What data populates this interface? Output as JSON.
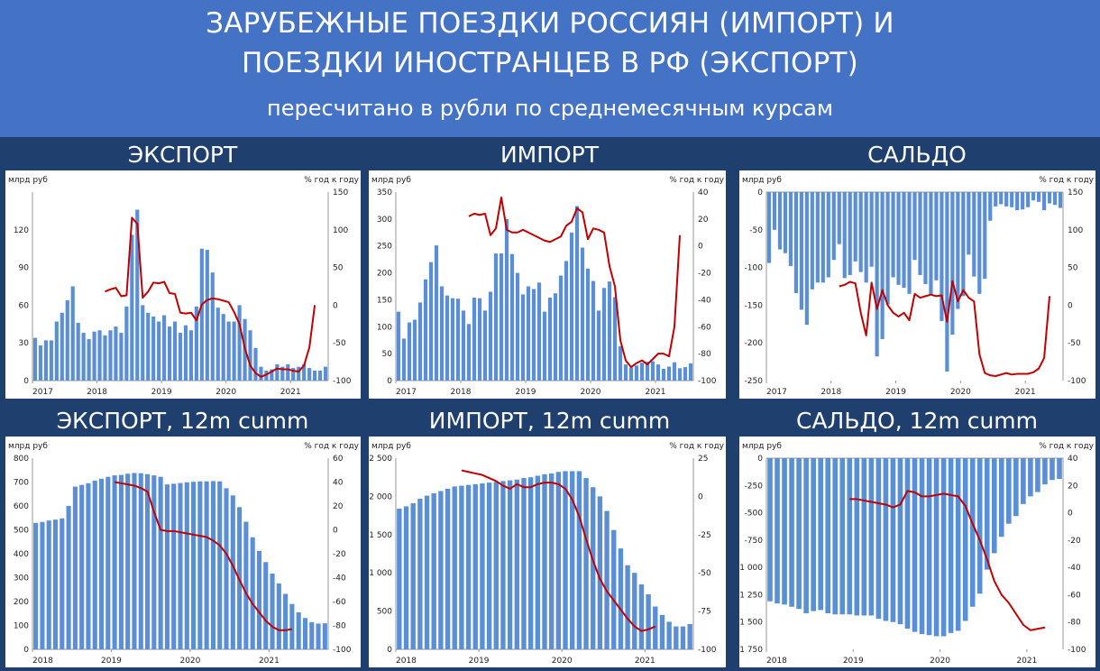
{
  "header": {
    "title_line1": "ЗАРУБЕЖНЫЕ ПОЕЗДКИ РОССИЯН (ИМПОРТ) И",
    "title_line2": "ПОЕЗДКИ ИНОСТРАНЦЕВ В РФ (ЭКСПОРТ)",
    "subtitle": "пересчитано в рубли по среднемесячным курсам"
  },
  "colors": {
    "bars": "#5b8fd5",
    "line": "#c00000",
    "header": "#4472c4",
    "frame": "#1f3f6e"
  },
  "chart_data": [
    {
      "id": "export-monthly",
      "type": "bar",
      "panel_title": "ЭКСПОРТ",
      "left_unit": "млрд руб",
      "right_unit": "% год к году",
      "x_start": 2017,
      "x_ticks": [
        "2017",
        "2018",
        "2019",
        "2020",
        "2021"
      ],
      "ylim": [
        0,
        150
      ],
      "y_ticks": [
        "0",
        "30",
        "60",
        "90",
        "120"
      ],
      "y2lim": [
        -100,
        150
      ],
      "y2_ticks": [
        "-100",
        "-50",
        "0",
        "50",
        "100",
        "150"
      ],
      "series": [
        {
          "values": [
            34,
            28,
            32,
            32,
            47,
            54,
            64,
            75,
            46,
            38,
            33,
            39,
            40,
            36,
            40,
            43,
            38,
            59,
            116,
            136,
            60,
            54,
            51,
            47,
            52,
            43,
            47,
            38,
            44,
            40,
            59,
            105,
            104,
            86,
            58,
            53,
            47,
            47,
            60,
            49,
            40,
            26,
            11,
            8,
            9,
            13,
            11,
            13,
            10,
            11,
            13,
            10,
            8,
            8,
            11
          ]
        },
        {
          "type": "line",
          "axis": "right",
          "start_index": 13,
          "values": [
            18,
            21,
            23,
            12,
            13,
            116,
            108,
            10,
            18,
            30,
            29,
            31,
            16,
            15,
            -10,
            -11,
            -10,
            -20,
            1,
            7,
            9,
            8,
            6,
            4,
            -9,
            -25,
            -57,
            -80,
            -90,
            -95,
            -92,
            -88,
            -84,
            -85,
            -85,
            -87,
            -88,
            -80,
            -56,
            0
          ]
        }
      ]
    },
    {
      "id": "import-monthly",
      "type": "bar",
      "panel_title": "ИМПОРТ",
      "left_unit": "млрд руб",
      "right_unit": "% год к году",
      "x_start": 2017,
      "x_ticks": [
        "2017",
        "2018",
        "2019",
        "2020",
        "2021"
      ],
      "ylim": [
        0,
        350
      ],
      "y_ticks": [
        "0",
        "50",
        "100",
        "150",
        "200",
        "250",
        "300",
        "350"
      ],
      "y2lim": [
        -100,
        40
      ],
      "y2_ticks": [
        "-100",
        "-80",
        "-60",
        "-40",
        "-20",
        "0",
        "20",
        "40"
      ],
      "series": [
        {
          "values": [
            128,
            78,
            108,
            113,
            145,
            188,
            220,
            251,
            175,
            158,
            153,
            152,
            130,
            105,
            154,
            153,
            130,
            165,
            236,
            236,
            300,
            235,
            200,
            160,
            175,
            170,
            182,
            128,
            154,
            162,
            195,
            222,
            275,
            324,
            247,
            208,
            185,
            130,
            172,
            184,
            155,
            64,
            30,
            24,
            28,
            33,
            35,
            36,
            30,
            22,
            26,
            34,
            23,
            25,
            32
          ]
        },
        {
          "type": "line",
          "axis": "right",
          "start_index": 13,
          "values": [
            22,
            24,
            23,
            24,
            8,
            13,
            36,
            12,
            10,
            10,
            12,
            10,
            8,
            6,
            4,
            3,
            5,
            7,
            15,
            18,
            28,
            25,
            5,
            13,
            12,
            10,
            -15,
            -30,
            -70,
            -85,
            -90,
            -87,
            -85,
            -88,
            -84,
            -80,
            -80,
            -82,
            -60,
            8
          ]
        }
      ]
    },
    {
      "id": "balance-monthly",
      "type": "bar",
      "panel_title": "САЛЬДО",
      "left_unit": "млрд руб",
      "right_unit": "% год к году",
      "x_start": 2017,
      "x_ticks": [
        "2017",
        "2018",
        "2019",
        "2020",
        "2021"
      ],
      "ylim": [
        -250,
        0
      ],
      "y_ticks": [
        "-250",
        "-200",
        "-150",
        "-100",
        "-50",
        "0"
      ],
      "y2lim": [
        -100,
        150
      ],
      "y2_ticks": [
        "-100",
        "-50",
        "0",
        "50",
        "100",
        "150"
      ],
      "series": [
        {
          "values": [
            -94,
            -50,
            -76,
            -81,
            -98,
            -134,
            -156,
            -176,
            -129,
            -120,
            -120,
            -113,
            -90,
            -69,
            -114,
            -110,
            -92,
            -106,
            -120,
            -99,
            -218,
            -195,
            -149,
            -113,
            -123,
            -127,
            -135,
            -90,
            -110,
            -122,
            -136,
            -117,
            -171,
            -238,
            -189,
            -155,
            -138,
            -83,
            -112,
            -135,
            -115,
            -38,
            -19,
            -16,
            -19,
            -20,
            -24,
            -23,
            -20,
            -11,
            -13,
            -24,
            -15,
            -17,
            -21
          ]
        },
        {
          "type": "line",
          "axis": "right",
          "start_index": 13,
          "values": [
            25,
            27,
            31,
            29,
            -10,
            -40,
            30,
            -5,
            20,
            0,
            -10,
            -15,
            -10,
            -20,
            15,
            10,
            12,
            14,
            12,
            13,
            -22,
            32,
            5,
            20,
            10,
            5,
            -65,
            -90,
            -93,
            -94,
            -92,
            -90,
            -92,
            -91,
            -91,
            -91,
            -89,
            -84,
            -70,
            12
          ]
        }
      ]
    },
    {
      "id": "export-12m",
      "type": "bar",
      "panel_title": "ЭКСПОРТ, 12m cumm",
      "left_unit": "млрд руб",
      "right_unit": "% год к году",
      "x_start": 2018,
      "x_ticks": [
        "2018",
        "2019",
        "2020",
        "2021"
      ],
      "ylim": [
        0,
        800
      ],
      "y_ticks": [
        "0",
        "100",
        "200",
        "300",
        "400",
        "500",
        "600",
        "700",
        "800"
      ],
      "y2lim": [
        -100,
        60
      ],
      "y2_ticks": [
        "-100",
        "-80",
        "-60",
        "-40",
        "-20",
        "0",
        "20",
        "40",
        "60"
      ],
      "series": [
        {
          "values": [
            529,
            533,
            539,
            543,
            548,
            600,
            681,
            688,
            695,
            706,
            714,
            722,
            728,
            730,
            735,
            738,
            737,
            733,
            728,
            722,
            690,
            693,
            696,
            699,
            701,
            703,
            703,
            704,
            703,
            674,
            644,
            595,
            534,
            469,
            412,
            365,
            317,
            276,
            232,
            190,
            155,
            131,
            114,
            108,
            109
          ]
        },
        {
          "type": "line",
          "axis": "right",
          "start_index": 12,
          "values": [
            40,
            39,
            38,
            37,
            35,
            32,
            15,
            0,
            -1,
            -1,
            -2,
            -3,
            -4,
            -5,
            -6,
            -9,
            -13,
            -20,
            -30,
            -42,
            -53,
            -62,
            -69,
            -76,
            -81,
            -84,
            -84,
            -83
          ]
        }
      ]
    },
    {
      "id": "import-12m",
      "type": "bar",
      "panel_title": "ИМПОРТ, 12m cumm",
      "left_unit": "млрд руб",
      "right_unit": "% год к году",
      "x_start": 2018,
      "x_ticks": [
        "2018",
        "2019",
        "2020",
        "2021"
      ],
      "ylim": [
        0,
        2500
      ],
      "y_ticks": [
        "0",
        "500",
        "1 000",
        "1 500",
        "2 000",
        "2 500"
      ],
      "y2lim": [
        -100,
        25
      ],
      "y2_ticks": [
        "-100",
        "-75",
        "-50",
        "-25",
        "0",
        "25"
      ],
      "series": [
        {
          "values": [
            1840,
            1870,
            1910,
            1970,
            2010,
            2040,
            2070,
            2100,
            2130,
            2140,
            2150,
            2160,
            2170,
            2180,
            2190,
            2200,
            2210,
            2220,
            2240,
            2250,
            2270,
            2290,
            2300,
            2320,
            2330,
            2330,
            2330,
            2240,
            2120,
            2000,
            1810,
            1560,
            1320,
            1100,
            1000,
            850,
            720,
            560,
            450,
            360,
            300,
            300,
            330
          ]
        },
        {
          "type": "line",
          "axis": "right",
          "start_index": 9,
          "values": [
            17,
            16,
            15,
            14,
            12,
            10,
            7,
            5,
            8,
            6,
            6,
            8,
            9,
            9,
            8,
            5,
            -2,
            -13,
            -28,
            -42,
            -54,
            -62,
            -68,
            -74,
            -80,
            -85,
            -88,
            -87,
            -85
          ]
        }
      ]
    },
    {
      "id": "balance-12m",
      "type": "bar",
      "panel_title": "САЛЬДО, 12m cumm",
      "left_unit": "млрд руб",
      "right_unit": "% год к году",
      "x_start": 2018,
      "x_ticks": [
        "2018",
        "2019",
        "2020",
        "2021"
      ],
      "ylim": [
        -1750,
        0
      ],
      "y_ticks": [
        "-1 750",
        "-1 500",
        "-1 250",
        "-1 000",
        "-750",
        "-500",
        "-250",
        "0"
      ],
      "y2lim": [
        -100,
        40
      ],
      "y2_ticks": [
        "-100",
        "-80",
        "-60",
        "-40",
        "-20",
        "0",
        "20",
        "40"
      ],
      "series": [
        {
          "values": [
            -1310,
            -1330,
            -1340,
            -1360,
            -1380,
            -1420,
            -1400,
            -1390,
            -1420,
            -1430,
            -1430,
            -1430,
            -1440,
            -1440,
            -1440,
            -1470,
            -1490,
            -1500,
            -1520,
            -1560,
            -1590,
            -1610,
            -1620,
            -1630,
            -1630,
            -1600,
            -1580,
            -1490,
            -1360,
            -1240,
            -1020,
            -870,
            -720,
            -600,
            -530,
            -420,
            -350,
            -310,
            -240,
            -200,
            -190
          ]
        },
        {
          "type": "line",
          "axis": "right",
          "start_index": 11,
          "values": [
            10,
            10,
            9,
            8,
            7,
            6,
            4,
            6,
            16,
            15,
            12,
            12,
            13,
            14,
            13,
            12,
            5,
            -8,
            -20,
            -34,
            -50,
            -60,
            -66,
            -74,
            -82,
            -86,
            -85,
            -84
          ]
        }
      ]
    }
  ]
}
